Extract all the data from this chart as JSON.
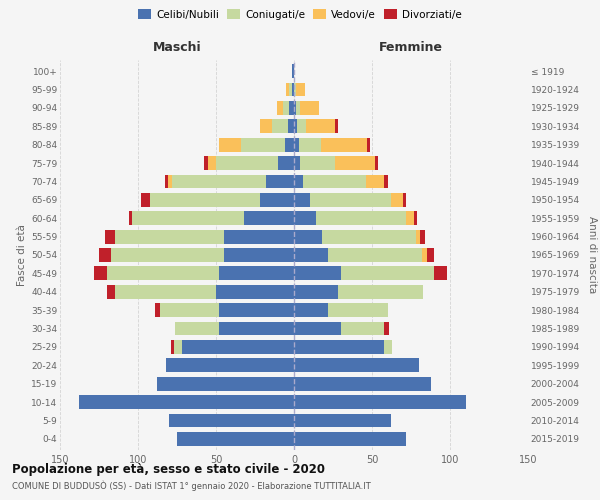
{
  "age_groups": [
    "0-4",
    "5-9",
    "10-14",
    "15-19",
    "20-24",
    "25-29",
    "30-34",
    "35-39",
    "40-44",
    "45-49",
    "50-54",
    "55-59",
    "60-64",
    "65-69",
    "70-74",
    "75-79",
    "80-84",
    "85-89",
    "90-94",
    "95-99",
    "100+"
  ],
  "birth_years": [
    "2015-2019",
    "2010-2014",
    "2005-2009",
    "2000-2004",
    "1995-1999",
    "1990-1994",
    "1985-1989",
    "1980-1984",
    "1975-1979",
    "1970-1974",
    "1965-1969",
    "1960-1964",
    "1955-1959",
    "1950-1954",
    "1945-1949",
    "1940-1944",
    "1935-1939",
    "1930-1934",
    "1925-1929",
    "1920-1924",
    "≤ 1919"
  ],
  "maschi": {
    "celibi": [
      75,
      80,
      138,
      88,
      82,
      72,
      48,
      48,
      50,
      48,
      45,
      45,
      32,
      22,
      18,
      10,
      6,
      4,
      3,
      1,
      1
    ],
    "coniugati": [
      0,
      0,
      0,
      0,
      0,
      5,
      28,
      38,
      65,
      72,
      72,
      70,
      72,
      70,
      60,
      40,
      28,
      10,
      4,
      2,
      0
    ],
    "vedovi": [
      0,
      0,
      0,
      0,
      0,
      0,
      0,
      0,
      0,
      0,
      0,
      0,
      0,
      0,
      3,
      5,
      14,
      8,
      4,
      2,
      0
    ],
    "divorziati": [
      0,
      0,
      0,
      0,
      0,
      2,
      0,
      3,
      5,
      8,
      8,
      6,
      2,
      6,
      2,
      3,
      0,
      0,
      0,
      0,
      0
    ]
  },
  "femmine": {
    "nubili": [
      72,
      62,
      110,
      88,
      80,
      58,
      30,
      22,
      28,
      30,
      22,
      18,
      14,
      10,
      6,
      4,
      3,
      2,
      1,
      0,
      0
    ],
    "coniugate": [
      0,
      0,
      0,
      0,
      0,
      5,
      28,
      38,
      55,
      60,
      60,
      60,
      58,
      52,
      40,
      22,
      14,
      6,
      3,
      1,
      0
    ],
    "vedove": [
      0,
      0,
      0,
      0,
      0,
      0,
      0,
      0,
      0,
      0,
      3,
      3,
      5,
      8,
      12,
      26,
      30,
      18,
      12,
      6,
      0
    ],
    "divorziate": [
      0,
      0,
      0,
      0,
      0,
      0,
      3,
      0,
      0,
      8,
      5,
      3,
      2,
      2,
      2,
      2,
      2,
      2,
      0,
      0,
      0
    ]
  },
  "colors": {
    "celibi": "#4a72b0",
    "coniugati": "#c6d9a0",
    "vedovi": "#fac05a",
    "divorziati": "#c0202a"
  },
  "title": "Popolazione per età, sesso e stato civile - 2020",
  "subtitle": "COMUNE DI BUDDUSÒ (SS) - Dati ISTAT 1° gennaio 2020 - Elaborazione TUTTITALIA.IT",
  "xlabel_left": "Maschi",
  "xlabel_right": "Femmine",
  "ylabel_left": "Fasce di età",
  "ylabel_right": "Anni di nascita",
  "xlim": 150,
  "bg_color": "#f5f5f5",
  "plot_bg": "#f5f5f5",
  "grid_color": "#cccccc"
}
